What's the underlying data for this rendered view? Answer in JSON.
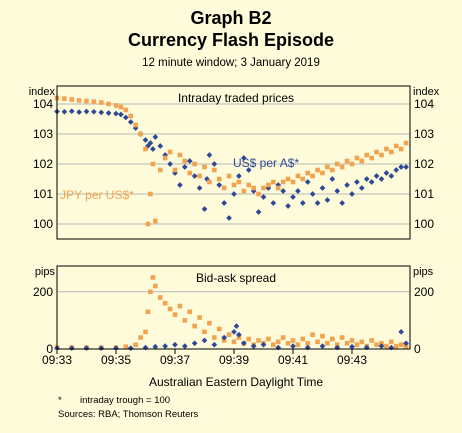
{
  "title": "Graph B2",
  "subtitle": "Currency Flash Episode",
  "caption": "12 minute window; 3 January 2019",
  "footnote": "intraday trough = 100",
  "footnote_marker": "*",
  "source": "Sources: RBA; Thomson Reuters",
  "colors": {
    "usd": "#2f4797",
    "jpy": "#f2a34f",
    "background": "#fdfbd9"
  },
  "chart_data": [
    {
      "type": "scatter",
      "title": "Intraday traded prices",
      "ylabel_left": "index",
      "ylabel_right": "index",
      "ylim": [
        99.5,
        104.6
      ],
      "yticks": [
        100,
        101,
        102,
        103,
        104
      ],
      "xlabel": "Australian Eastern Daylight Time",
      "xticks": [
        "09:33",
        "09:35",
        "09:37",
        "09:39",
        "09:41",
        "09:43"
      ],
      "series": [
        {
          "name": "US$ per A$*",
          "color": "#2f4797",
          "points": [
            [
              "09:33:00",
              103.75
            ],
            [
              "09:33:15",
              103.74
            ],
            [
              "09:33:30",
              103.76
            ],
            [
              "09:33:45",
              103.73
            ],
            [
              "09:34:00",
              103.75
            ],
            [
              "09:34:15",
              103.74
            ],
            [
              "09:34:30",
              103.72
            ],
            [
              "09:34:45",
              103.7
            ],
            [
              "09:35:00",
              103.68
            ],
            [
              "09:35:10",
              103.65
            ],
            [
              "09:35:20",
              103.55
            ],
            [
              "09:35:30",
              103.4
            ],
            [
              "09:35:40",
              103.2
            ],
            [
              "09:35:50",
              103.0
            ],
            [
              "09:36:00",
              102.8
            ],
            [
              "09:36:05",
              102.6
            ],
            [
              "09:36:10",
              102.7
            ],
            [
              "09:36:15",
              102.5
            ],
            [
              "09:36:20",
              102.9
            ],
            [
              "09:36:30",
              102.6
            ],
            [
              "09:36:40",
              102.3
            ],
            [
              "09:36:50",
              102.0
            ],
            [
              "09:37:00",
              101.7
            ],
            [
              "09:37:10",
              101.3
            ],
            [
              "09:37:20",
              101.9
            ],
            [
              "09:37:30",
              102.1
            ],
            [
              "09:37:40",
              101.6
            ],
            [
              "09:37:50",
              101.2
            ],
            [
              "09:38:00",
              100.5
            ],
            [
              "09:38:05",
              101.5
            ],
            [
              "09:38:10",
              102.3
            ],
            [
              "09:38:20",
              102.0
            ],
            [
              "09:38:30",
              101.3
            ],
            [
              "09:38:40",
              100.7
            ],
            [
              "09:38:50",
              100.2
            ],
            [
              "09:39:00",
              101.0
            ],
            [
              "09:39:10",
              101.6
            ],
            [
              "09:39:20",
              102.2
            ],
            [
              "09:39:30",
              101.8
            ],
            [
              "09:39:40",
              101.1
            ],
            [
              "09:39:50",
              100.4
            ],
            [
              "09:40:00",
              100.9
            ],
            [
              "09:40:10",
              101.2
            ],
            [
              "09:40:20",
              100.7
            ],
            [
              "09:40:30",
              101.3
            ],
            [
              "09:40:40",
              101.1
            ],
            [
              "09:40:50",
              100.6
            ],
            [
              "09:41:00",
              100.9
            ],
            [
              "09:41:10",
              101.1
            ],
            [
              "09:41:20",
              100.7
            ],
            [
              "09:41:30",
              101.4
            ],
            [
              "09:41:40",
              101.0
            ],
            [
              "09:41:50",
              100.7
            ],
            [
              "09:42:00",
              101.2
            ],
            [
              "09:42:10",
              100.8
            ],
            [
              "09:42:20",
              101.5
            ],
            [
              "09:42:30",
              101.1
            ],
            [
              "09:42:40",
              100.7
            ],
            [
              "09:42:50",
              101.3
            ],
            [
              "09:43:00",
              101.0
            ],
            [
              "09:43:10",
              101.4
            ],
            [
              "09:43:20",
              101.2
            ],
            [
              "09:43:30",
              101.5
            ],
            [
              "09:43:40",
              101.4
            ],
            [
              "09:43:50",
              101.6
            ],
            [
              "09:44:00",
              101.5
            ],
            [
              "09:44:10",
              101.7
            ],
            [
              "09:44:20",
              101.6
            ],
            [
              "09:44:30",
              101.8
            ],
            [
              "09:44:40",
              101.9
            ],
            [
              "09:44:50",
              101.9
            ]
          ]
        },
        {
          "name": "JPY per US$*",
          "color": "#f2a34f",
          "points": [
            [
              "09:33:00",
              104.2
            ],
            [
              "09:33:15",
              104.18
            ],
            [
              "09:33:30",
              104.15
            ],
            [
              "09:33:45",
              104.12
            ],
            [
              "09:34:00",
              104.1
            ],
            [
              "09:34:15",
              104.08
            ],
            [
              "09:34:30",
              104.05
            ],
            [
              "09:34:45",
              104.0
            ],
            [
              "09:35:00",
              103.95
            ],
            [
              "09:35:10",
              103.9
            ],
            [
              "09:35:20",
              103.8
            ],
            [
              "09:35:30",
              103.6
            ],
            [
              "09:35:40",
              103.3
            ],
            [
              "09:35:50",
              103.0
            ],
            [
              "09:36:00",
              102.5
            ],
            [
              "09:36:05",
              100.0
            ],
            [
              "09:36:10",
              101.0
            ],
            [
              "09:36:15",
              102.0
            ],
            [
              "09:36:20",
              100.1
            ],
            [
              "09:36:30",
              101.8
            ],
            [
              "09:36:40",
              102.2
            ],
            [
              "09:36:50",
              102.4
            ],
            [
              "09:37:00",
              101.8
            ],
            [
              "09:37:10",
              102.3
            ],
            [
              "09:37:20",
              102.1
            ],
            [
              "09:37:30",
              101.7
            ],
            [
              "09:37:40",
              102.0
            ],
            [
              "09:37:50",
              101.6
            ],
            [
              "09:38:00",
              101.9
            ],
            [
              "09:38:10",
              101.4
            ],
            [
              "09:38:20",
              101.8
            ],
            [
              "09:38:30",
              101.5
            ],
            [
              "09:38:40",
              101.2
            ],
            [
              "09:38:50",
              101.6
            ],
            [
              "09:39:00",
              101.3
            ],
            [
              "09:39:10",
              101.4
            ],
            [
              "09:39:20",
              101.1
            ],
            [
              "09:39:30",
              101.3
            ],
            [
              "09:39:40",
              101.2
            ],
            [
              "09:39:50",
              101.0
            ],
            [
              "09:40:00",
              101.2
            ],
            [
              "09:40:10",
              101.3
            ],
            [
              "09:40:20",
              101.4
            ],
            [
              "09:40:30",
              101.2
            ],
            [
              "09:40:40",
              101.4
            ],
            [
              "09:40:50",
              101.5
            ],
            [
              "09:41:00",
              101.4
            ],
            [
              "09:41:10",
              101.6
            ],
            [
              "09:41:20",
              101.5
            ],
            [
              "09:41:30",
              101.7
            ],
            [
              "09:41:40",
              101.6
            ],
            [
              "09:41:50",
              101.8
            ],
            [
              "09:42:00",
              101.7
            ],
            [
              "09:42:10",
              101.9
            ],
            [
              "09:42:20",
              101.8
            ],
            [
              "09:42:30",
              102.0
            ],
            [
              "09:42:40",
              101.9
            ],
            [
              "09:42:50",
              102.1
            ],
            [
              "09:43:00",
              102.0
            ],
            [
              "09:43:10",
              102.2
            ],
            [
              "09:43:20",
              102.1
            ],
            [
              "09:43:30",
              102.3
            ],
            [
              "09:43:40",
              102.2
            ],
            [
              "09:43:50",
              102.4
            ],
            [
              "09:44:00",
              102.3
            ],
            [
              "09:44:10",
              102.5
            ],
            [
              "09:44:20",
              102.4
            ],
            [
              "09:44:30",
              102.6
            ],
            [
              "09:44:40",
              102.5
            ],
            [
              "09:44:50",
              102.7
            ]
          ]
        }
      ]
    },
    {
      "type": "scatter",
      "title": "Bid-ask spread",
      "ylabel_left": "pips",
      "ylabel_right": "pips",
      "ylim": [
        0,
        290
      ],
      "yticks": [
        0,
        200
      ],
      "xticks": [
        "09:33",
        "09:35",
        "09:37",
        "09:39",
        "09:41",
        "09:43"
      ],
      "series": [
        {
          "name": "JPY per US$",
          "color": "#f2a34f",
          "points": [
            [
              "09:33:00",
              5
            ],
            [
              "09:33:30",
              5
            ],
            [
              "09:34:00",
              5
            ],
            [
              "09:34:30",
              5
            ],
            [
              "09:35:00",
              5
            ],
            [
              "09:35:20",
              8
            ],
            [
              "09:35:40",
              15
            ],
            [
              "09:35:50",
              40
            ],
            [
              "09:36:00",
              60
            ],
            [
              "09:36:05",
              130
            ],
            [
              "09:36:10",
              200
            ],
            [
              "09:36:15",
              250
            ],
            [
              "09:36:20",
              220
            ],
            [
              "09:36:30",
              180
            ],
            [
              "09:36:40",
              160
            ],
            [
              "09:36:50",
              140
            ],
            [
              "09:37:00",
              120
            ],
            [
              "09:37:10",
              150
            ],
            [
              "09:37:20",
              100
            ],
            [
              "09:37:30",
              130
            ],
            [
              "09:37:40",
              80
            ],
            [
              "09:37:50",
              110
            ],
            [
              "09:38:00",
              60
            ],
            [
              "09:38:10",
              90
            ],
            [
              "09:38:20",
              40
            ],
            [
              "09:38:30",
              70
            ],
            [
              "09:38:40",
              30
            ],
            [
              "09:38:50",
              50
            ],
            [
              "09:39:00",
              25
            ],
            [
              "09:39:10",
              40
            ],
            [
              "09:39:20",
              20
            ],
            [
              "09:39:30",
              35
            ],
            [
              "09:39:40",
              15
            ],
            [
              "09:39:50",
              30
            ],
            [
              "09:40:00",
              20
            ],
            [
              "09:40:10",
              35
            ],
            [
              "09:40:20",
              15
            ],
            [
              "09:40:30",
              25
            ],
            [
              "09:40:40",
              40
            ],
            [
              "09:40:50",
              20
            ],
            [
              "09:41:00",
              30
            ],
            [
              "09:41:10",
              15
            ],
            [
              "09:41:20",
              35
            ],
            [
              "09:41:30",
              20
            ],
            [
              "09:41:40",
              50
            ],
            [
              "09:41:50",
              25
            ],
            [
              "09:42:00",
              45
            ],
            [
              "09:42:10",
              20
            ],
            [
              "09:42:20",
              35
            ],
            [
              "09:42:30",
              15
            ],
            [
              "09:42:40",
              40
            ],
            [
              "09:42:50",
              20
            ],
            [
              "09:43:00",
              30
            ],
            [
              "09:43:10",
              15
            ],
            [
              "09:43:20",
              25
            ],
            [
              "09:43:30",
              10
            ],
            [
              "09:43:40",
              30
            ],
            [
              "09:43:50",
              15
            ],
            [
              "09:44:00",
              20
            ],
            [
              "09:44:10",
              10
            ],
            [
              "09:44:20",
              25
            ],
            [
              "09:44:30",
              10
            ],
            [
              "09:44:40",
              15
            ],
            [
              "09:44:50",
              10
            ]
          ]
        },
        {
          "name": "US$ per A$",
          "color": "#2f4797",
          "points": [
            [
              "09:33:00",
              3
            ],
            [
              "09:33:30",
              3
            ],
            [
              "09:34:00",
              3
            ],
            [
              "09:34:30",
              3
            ],
            [
              "09:35:00",
              3
            ],
            [
              "09:35:30",
              3
            ],
            [
              "09:36:00",
              5
            ],
            [
              "09:36:20",
              8
            ],
            [
              "09:36:40",
              10
            ],
            [
              "09:37:00",
              15
            ],
            [
              "09:37:20",
              10
            ],
            [
              "09:37:40",
              20
            ],
            [
              "09:38:00",
              30
            ],
            [
              "09:38:20",
              15
            ],
            [
              "09:38:40",
              40
            ],
            [
              "09:39:00",
              60
            ],
            [
              "09:39:05",
              80
            ],
            [
              "09:39:10",
              50
            ],
            [
              "09:39:20",
              20
            ],
            [
              "09:39:40",
              10
            ],
            [
              "09:40:00",
              15
            ],
            [
              "09:40:30",
              5
            ],
            [
              "09:41:00",
              10
            ],
            [
              "09:41:30",
              5
            ],
            [
              "09:42:00",
              10
            ],
            [
              "09:42:30",
              5
            ],
            [
              "09:43:00",
              8
            ],
            [
              "09:43:30",
              5
            ],
            [
              "09:44:00",
              10
            ],
            [
              "09:44:20",
              5
            ],
            [
              "09:44:40",
              60
            ],
            [
              "09:44:50",
              20
            ]
          ]
        }
      ]
    }
  ]
}
